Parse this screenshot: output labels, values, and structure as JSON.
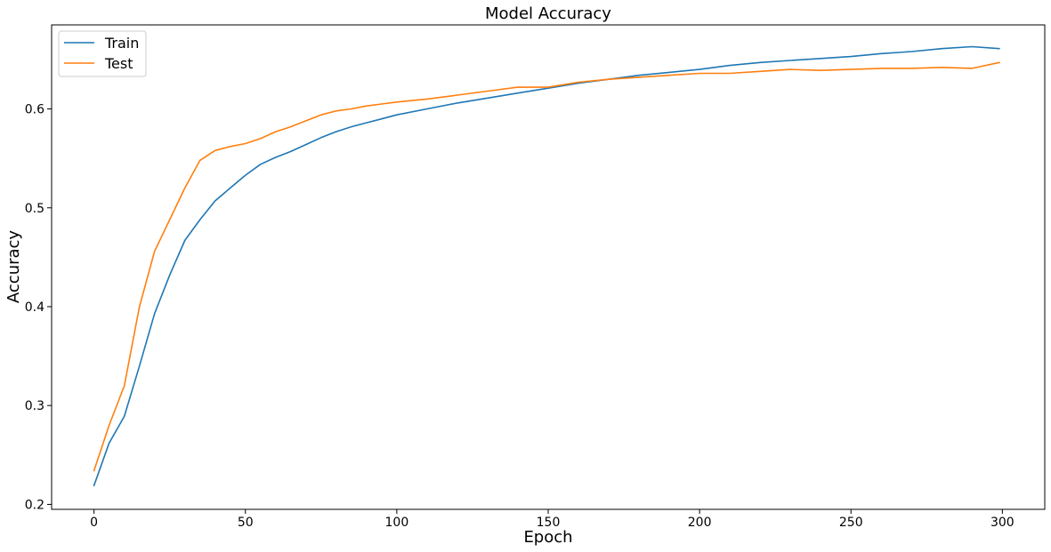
{
  "chart_data": {
    "type": "line",
    "title": "Model Accuracy",
    "xlabel": "Epoch",
    "ylabel": "Accuracy",
    "xlim": [
      -14,
      314
    ],
    "ylim": [
      0.195,
      0.685
    ],
    "xticks": [
      0,
      50,
      100,
      150,
      200,
      250,
      300
    ],
    "xtick_labels": [
      "0",
      "50",
      "100",
      "150",
      "200",
      "250",
      "300"
    ],
    "yticks": [
      0.2,
      0.3,
      0.4,
      0.5,
      0.6
    ],
    "ytick_labels": [
      "0.2",
      "0.3",
      "0.4",
      "0.5",
      "0.6"
    ],
    "grid": false,
    "legend_position": "top-left",
    "series": [
      {
        "name": "Train",
        "color": "#1f77b4",
        "x": [
          0,
          5,
          10,
          15,
          20,
          25,
          30,
          35,
          40,
          45,
          50,
          55,
          60,
          65,
          70,
          75,
          80,
          85,
          90,
          95,
          100,
          110,
          120,
          130,
          140,
          150,
          160,
          170,
          180,
          190,
          200,
          210,
          220,
          230,
          240,
          250,
          260,
          270,
          280,
          290,
          299
        ],
        "y": [
          0.219,
          0.262,
          0.289,
          0.34,
          0.393,
          0.432,
          0.467,
          0.488,
          0.507,
          0.52,
          0.533,
          0.544,
          0.551,
          0.557,
          0.564,
          0.571,
          0.577,
          0.582,
          0.586,
          0.59,
          0.594,
          0.6,
          0.606,
          0.611,
          0.616,
          0.621,
          0.626,
          0.63,
          0.634,
          0.637,
          0.64,
          0.644,
          0.647,
          0.649,
          0.651,
          0.653,
          0.656,
          0.658,
          0.661,
          0.663,
          0.661
        ]
      },
      {
        "name": "Test",
        "color": "#ff7f0e",
        "x": [
          0,
          5,
          10,
          15,
          20,
          25,
          30,
          35,
          40,
          45,
          50,
          55,
          60,
          65,
          70,
          75,
          80,
          85,
          90,
          95,
          100,
          110,
          120,
          130,
          140,
          150,
          160,
          170,
          180,
          190,
          200,
          210,
          220,
          230,
          240,
          250,
          260,
          270,
          280,
          290,
          299
        ],
        "y": [
          0.234,
          0.28,
          0.32,
          0.4,
          0.456,
          0.488,
          0.52,
          0.548,
          0.558,
          0.562,
          0.565,
          0.57,
          0.577,
          0.582,
          0.588,
          0.594,
          0.598,
          0.6,
          0.603,
          0.605,
          0.607,
          0.61,
          0.614,
          0.618,
          0.622,
          0.622,
          0.627,
          0.63,
          0.632,
          0.634,
          0.636,
          0.636,
          0.638,
          0.64,
          0.639,
          0.64,
          0.641,
          0.641,
          0.642,
          0.641,
          0.647
        ]
      }
    ]
  }
}
